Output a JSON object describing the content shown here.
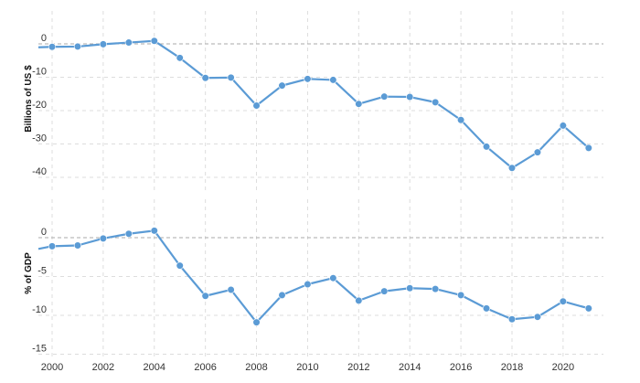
{
  "chart_data": [
    {
      "type": "line",
      "ylabel": "Billions of US $",
      "ylim": [
        -45,
        5
      ],
      "yticks": [
        0,
        -10,
        -20,
        -30,
        -40
      ],
      "color": "#5b9bd5",
      "x": [
        2000,
        2001,
        2002,
        2003,
        2004,
        2005,
        2006,
        2007,
        2008,
        2009,
        2010,
        2011,
        2012,
        2013,
        2014,
        2015,
        2016,
        2017,
        2018,
        2019,
        2020,
        2021
      ],
      "values": [
        -0.9,
        -0.8,
        -0.1,
        0.4,
        0.9,
        -4.2,
        -10.2,
        -10.1,
        -18.5,
        -12.5,
        -10.5,
        -10.8,
        -18.0,
        -15.8,
        -15.9,
        -17.5,
        -22.8,
        -30.8,
        -37.2,
        -32.5,
        -24.5,
        -31.2
      ]
    },
    {
      "type": "line",
      "ylabel": "% of GDP",
      "ylim": [
        -15,
        2
      ],
      "yticks": [
        0,
        -5,
        -10,
        -15
      ],
      "color": "#5b9bd5",
      "x": [
        2000,
        2001,
        2002,
        2003,
        2004,
        2005,
        2006,
        2007,
        2008,
        2009,
        2010,
        2011,
        2012,
        2013,
        2014,
        2015,
        2016,
        2017,
        2018,
        2019,
        2020,
        2021
      ],
      "values": [
        -1.1,
        -1.0,
        -0.1,
        0.5,
        0.9,
        -3.6,
        -7.5,
        -6.7,
        -10.9,
        -7.4,
        -6.0,
        -5.2,
        -8.1,
        -6.9,
        -6.5,
        -6.6,
        -7.4,
        -9.1,
        -10.5,
        -10.2,
        -8.2,
        -9.1
      ]
    }
  ],
  "xaxis": {
    "tick_labels": [
      "2000",
      "2002",
      "2004",
      "2006",
      "2008",
      "2010",
      "2012",
      "2014",
      "2016",
      "2018",
      "2020"
    ]
  }
}
